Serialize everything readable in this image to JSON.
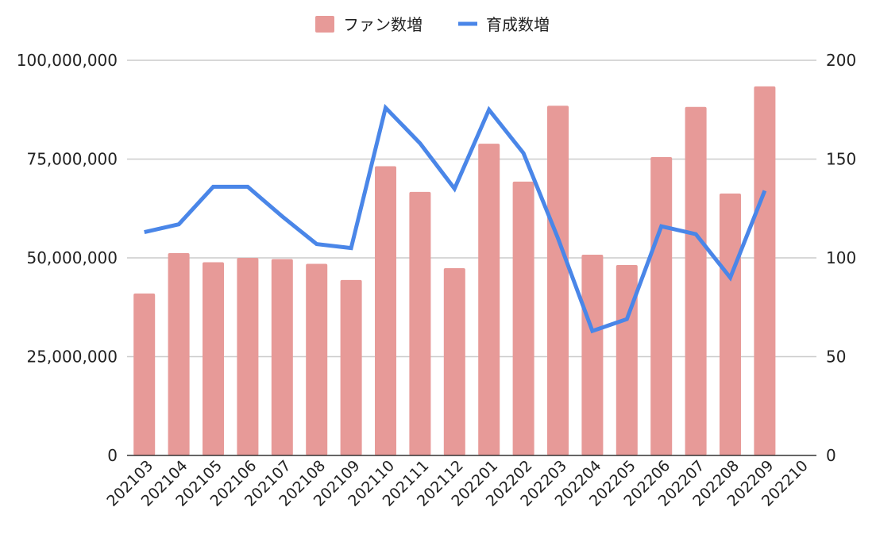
{
  "chart_data": {
    "type": "bar+line",
    "title": "",
    "categories": [
      "202103",
      "202104",
      "202105",
      "202106",
      "202107",
      "202108",
      "202109",
      "202110",
      "202111",
      "202112",
      "202201",
      "202202",
      "202203",
      "202204",
      "202205",
      "202206",
      "202207",
      "202208",
      "202209",
      "202210"
    ],
    "legend": {
      "placement": "top-center"
    },
    "grid": true,
    "y_left": {
      "ylim": [
        0,
        100000000
      ],
      "ticks": [
        0,
        25000000,
        50000000,
        75000000,
        100000000
      ],
      "tick_labels": [
        "0",
        "25,000,000",
        "50,000,000",
        "75,000,000",
        "100,000,000"
      ]
    },
    "y_right": {
      "ylim": [
        0,
        200
      ],
      "ticks": [
        0,
        50,
        100,
        150,
        200
      ],
      "tick_labels": [
        "0",
        "50",
        "100",
        "150",
        "200"
      ]
    },
    "series": [
      {
        "name": "ファン数増",
        "type": "bar",
        "axis": "left",
        "color": "#e79a98",
        "values": [
          41000000,
          51200000,
          48900000,
          50000000,
          49700000,
          48500000,
          44400000,
          73200000,
          66700000,
          47400000,
          78900000,
          69300000,
          88500000,
          50800000,
          48200000,
          75500000,
          88200000,
          66300000,
          93400000,
          null
        ]
      },
      {
        "name": "育成数増",
        "type": "line",
        "axis": "right",
        "color": "#4a86e8",
        "values": [
          113,
          117,
          136,
          136,
          121,
          107,
          105,
          176,
          158,
          135,
          175,
          153,
          110,
          63,
          69,
          116,
          112,
          90,
          134,
          null
        ]
      }
    ]
  }
}
